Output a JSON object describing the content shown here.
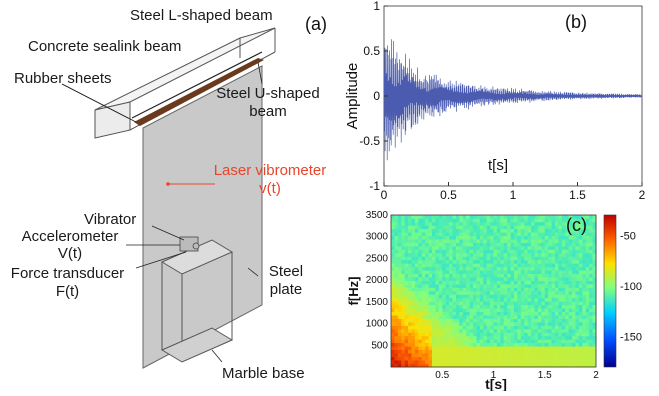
{
  "figure": {
    "panel_a": {
      "label": "(a)",
      "labels": {
        "steel_l_beam": "Steel L-shaped beam",
        "concrete_beam": "Concrete sealink beam",
        "rubber_sheets": "Rubber sheets",
        "steel_u_beam_line1": "Steel U-shaped",
        "steel_u_beam_line2": "beam",
        "laser_line1": "Laser vibrometer",
        "laser_line2": "v(t)",
        "vibrator": "Vibrator",
        "accelerometer_line1": "Accelerometer",
        "accelerometer_line2": "V(t)",
        "force_line1": "Force transducer",
        "force_line2": "F(t)",
        "steel_plate_line1": "Steel",
        "steel_plate_line2": "plate",
        "marble_base": "Marble base"
      },
      "colors": {
        "laser": "#e8452b",
        "outline": "#555555",
        "plate": "#c8c8c8",
        "rubber": "#6b3a1e"
      }
    }
  },
  "chart_data": [
    {
      "panel": "(b)",
      "type": "line",
      "xlabel": "t[s]",
      "ylabel": "Amplitude",
      "xlim": [
        0,
        2
      ],
      "ylim": [
        -1,
        1
      ],
      "xticks": [
        "0",
        "0.5",
        "1",
        "1.5",
        "2"
      ],
      "yticks": [
        "1",
        "0.5",
        "0",
        "-0.5",
        "-1"
      ],
      "grid": false,
      "color": "#4a5bb0",
      "series": [
        {
          "x": [
            0,
            0.05,
            0.1,
            0.2,
            0.3,
            0.5,
            0.75,
            1.0,
            1.25,
            1.5,
            1.75,
            2.0
          ],
          "envelope": [
            0.85,
            0.75,
            0.6,
            0.42,
            0.3,
            0.2,
            0.13,
            0.09,
            0.06,
            0.04,
            0.03,
            0.02
          ]
        }
      ]
    },
    {
      "panel": "(c)",
      "type": "heatmap",
      "xlabel": "t[s]",
      "ylabel": "f[Hz]",
      "xlim": [
        0,
        2
      ],
      "ylim": [
        0,
        3500
      ],
      "xticks": [
        "0.5",
        "1",
        "1.5",
        "2"
      ],
      "yticks": [
        "3500",
        "3000",
        "2500",
        "2000",
        "1500",
        "1000",
        "500"
      ],
      "colorbar": {
        "ticks": [
          "-50",
          "-100",
          "-150"
        ],
        "range": [
          -180,
          -30
        ]
      },
      "colormap": [
        "#00008f",
        "#0050ff",
        "#00d0ff",
        "#80ff80",
        "#ffe000",
        "#ff6000",
        "#c00000"
      ]
    }
  ]
}
